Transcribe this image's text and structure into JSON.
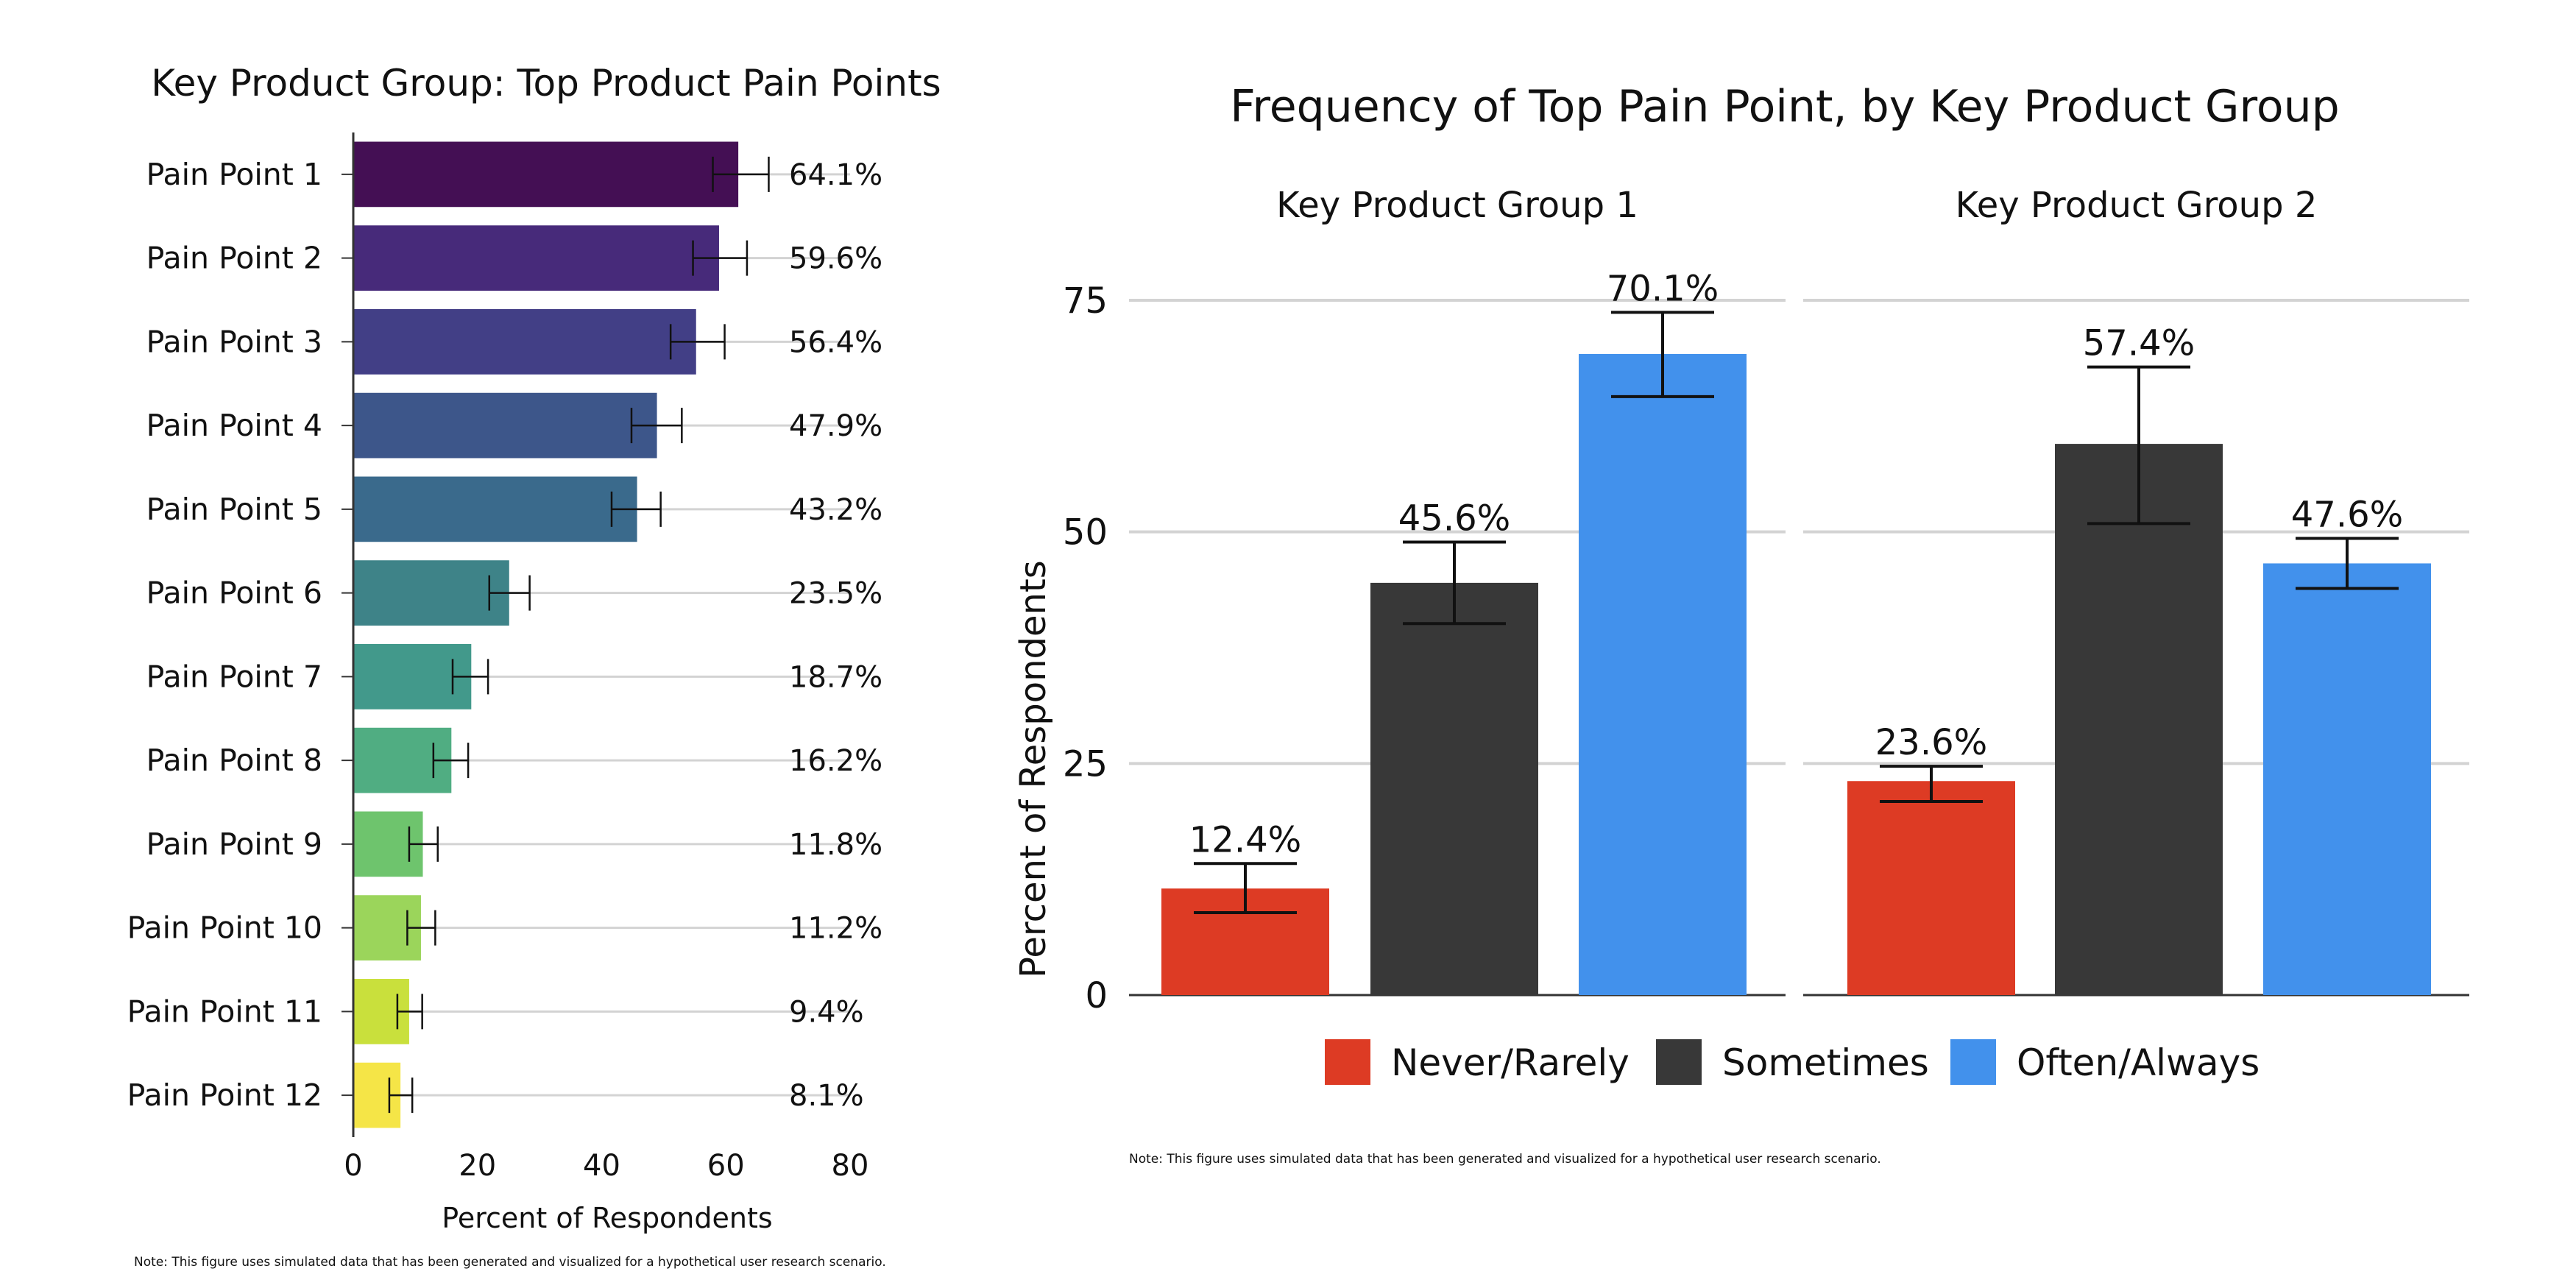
{
  "chart_data": [
    {
      "type": "bar",
      "orientation": "horizontal",
      "title": "Key Product Group: Top Product Pain Points",
      "xlabel": "Percent of Respondents",
      "ylabel": "",
      "xlim": [
        0,
        80
      ],
      "xticks": [
        "0",
        "20",
        "40",
        "60",
        "80"
      ],
      "grid": true,
      "categories": [
        "Pain Point 1",
        "Pain Point 2",
        "Pain Point 3",
        "Pain Point 4",
        "Pain Point 5",
        "Pain Point 6",
        "Pain Point 7",
        "Pain Point 8",
        "Pain Point 9",
        "Pain Point 10",
        "Pain Point 11",
        "Pain Point 12"
      ],
      "values": [
        64.1,
        59.6,
        56.4,
        47.9,
        43.2,
        23.5,
        18.7,
        16.2,
        11.8,
        11.2,
        9.4,
        8.1
      ],
      "bar_values": [
        62.0,
        58.9,
        55.2,
        48.9,
        45.7,
        25.1,
        19.0,
        15.8,
        11.2,
        10.9,
        9.0,
        7.6
      ],
      "error_low": [
        57.9,
        54.7,
        51.1,
        44.8,
        41.6,
        21.9,
        16.0,
        12.9,
        9.0,
        8.7,
        7.1,
        5.8
      ],
      "error_high": [
        66.9,
        63.4,
        59.8,
        52.9,
        49.5,
        28.4,
        21.7,
        18.5,
        13.6,
        13.2,
        11.1,
        9.5
      ],
      "value_labels": [
        "64.1%",
        "59.6%",
        "56.4%",
        "47.9%",
        "43.2%",
        "23.5%",
        "18.7%",
        "16.2%",
        "11.8%",
        "11.2%",
        "9.4%",
        "8.1%"
      ],
      "colors": [
        "#440f54",
        "#472a7a",
        "#423f86",
        "#3d568a",
        "#3a6a8c",
        "#3e8388",
        "#42998b",
        "#50ad82",
        "#6ec46d",
        "#9bd55b",
        "#c9e03c",
        "#f5e547"
      ],
      "note": "Note: This figure uses simulated data that has been generated and visualized for a hypothetical user research scenario."
    },
    {
      "type": "bar",
      "orientation": "vertical",
      "title": "Frequency of Top Pain Point, by Key Product Group",
      "ylabel": "Percent of Respondents",
      "xlabel": "",
      "ylim": [
        0,
        75
      ],
      "yticks": [
        "0",
        "25",
        "50",
        "75"
      ],
      "grid": true,
      "legend_position": "bottom",
      "facets": [
        "Key Product Group 1",
        "Key Product Group 2"
      ],
      "categories": [
        "Never/Rarely",
        "Sometimes",
        "Often/Always"
      ],
      "series": [
        {
          "facet": "Key Product Group 1",
          "values": [
            12.4,
            45.6,
            70.1
          ],
          "bar_values": [
            11.5,
            44.5,
            69.2
          ],
          "error_low": [
            8.9,
            40.1,
            64.6
          ],
          "error_high": [
            14.2,
            48.9,
            73.7
          ],
          "value_labels": [
            "12.4%",
            "45.6%",
            "70.1%"
          ]
        },
        {
          "facet": "Key Product Group 2",
          "values": [
            23.6,
            57.4,
            47.6
          ],
          "bar_values": [
            23.1,
            59.5,
            46.6
          ],
          "error_low": [
            20.9,
            50.9,
            43.9
          ],
          "error_high": [
            24.7,
            67.8,
            49.3
          ],
          "value_labels": [
            "23.6%",
            "57.4%",
            "47.6%"
          ]
        }
      ],
      "colors": [
        "#dd3b24",
        "#383838",
        "#4291ec"
      ],
      "legend": [
        "Never/Rarely",
        "Sometimes",
        "Often/Always"
      ],
      "note": "Note: This figure uses simulated data that has been generated and visualized for a hypothetical user research scenario."
    }
  ]
}
